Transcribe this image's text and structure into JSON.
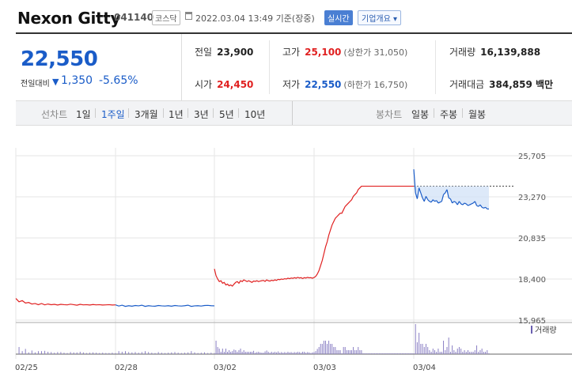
{
  "header": {
    "name": "Nexon Gitty",
    "code": "041140",
    "market": "코스닥",
    "time": "2022.03.04 13:49 기준(장중)",
    "realtime": "실시간",
    "company_info": "기업개요 ▾"
  },
  "summary": {
    "price": "22,550",
    "change_label": "전일대비",
    "change_arrow": "▼",
    "change": "1,350",
    "change_rate": "-5.65%",
    "prev_close_label": "전일",
    "prev_close": "23,900",
    "high_label": "고가",
    "high": "25,100",
    "upper_limit": "(상한가 31,050)",
    "volume_label": "거래량",
    "volume": "16,139,888",
    "open_label": "시가",
    "open": "24,450",
    "low_label": "저가",
    "low": "22,550",
    "lower_limit": "(하한가 16,750)",
    "amount_label": "거래대금",
    "amount": "384,859 백만"
  },
  "toolbar": {
    "line_label": "선차트",
    "periods": [
      "1일",
      "1주일",
      "3개월",
      "1년",
      "3년",
      "5년",
      "10년"
    ],
    "active_period": "1주일",
    "candle_label": "봉차트",
    "candles": [
      "일봉",
      "주봉",
      "월봉"
    ]
  },
  "colors": {
    "up": "#e02020",
    "down": "#1a5cc8",
    "volume": "#8a7fc4",
    "grid": "#e6e6e6"
  },
  "chart_data": {
    "type": "line",
    "y_ticks": [
      "25,705",
      "23,270",
      "20,835",
      "18,400",
      "15,965"
    ],
    "ylim": [
      15965,
      25705
    ],
    "reference_price": 23900,
    "x_labels": [
      "02/25",
      "02/28",
      "03/02",
      "03/03",
      "03/04"
    ],
    "volume_label": "거래량",
    "series": [
      {
        "day": "02/25",
        "color": "up",
        "values": [
          17250,
          17050,
          17120,
          16980,
          17010,
          16920,
          16950,
          16880,
          16950,
          16870,
          16920,
          16880,
          16900,
          16860,
          16900,
          16880,
          16870,
          16910,
          16880,
          16850,
          16900,
          16870,
          16880,
          16860,
          16890,
          16870,
          16880,
          16860,
          16870,
          16880,
          16860,
          16870
        ]
      },
      {
        "day": "02/28",
        "color": "down",
        "values": [
          16870,
          16800,
          16850,
          16780,
          16820,
          16790,
          16830,
          16810,
          16850,
          16780,
          16820,
          16800,
          16790,
          16830,
          16810,
          16800,
          16820,
          16790,
          16830,
          16810,
          16800,
          16820,
          16850,
          16780,
          16810,
          16820,
          16800,
          16830,
          16840,
          16820,
          16810
        ]
      },
      {
        "day": "03/02",
        "color": "up",
        "values": [
          19000,
          18600,
          18400,
          18250,
          18300,
          18150,
          18200,
          18050,
          18100,
          18000,
          18050,
          17980,
          18100,
          18200,
          18250,
          18150,
          18300,
          18250,
          18350,
          18300,
          18250,
          18300,
          18250,
          18200,
          18280,
          18260,
          18300,
          18250,
          18280,
          18300,
          18320,
          18260,
          18350,
          18300,
          18280,
          18330,
          18300,
          18350,
          18320,
          18380,
          18360,
          18400,
          18380,
          18420,
          18400,
          18450,
          18420,
          18460,
          18440,
          18480,
          18450,
          18500,
          18460,
          18480,
          18430,
          18480,
          18460,
          18500,
          18470,
          18480,
          18450,
          18490
        ]
      },
      {
        "day": "03/03",
        "color": "up",
        "values": [
          18490,
          18560,
          18700,
          18900,
          19200,
          19500,
          19900,
          20300,
          20600,
          21000,
          21300,
          21600,
          21800,
          22000,
          22100,
          22200,
          22300,
          22300,
          22500,
          22700,
          22800,
          22900,
          23000,
          23100,
          23300,
          23400,
          23500,
          23700,
          23800,
          23900,
          23900,
          23900,
          23900,
          23900,
          23900,
          23900,
          23900,
          23900,
          23900,
          23900,
          23900,
          23900,
          23900,
          23900,
          23900,
          23900,
          23900,
          23900,
          23900,
          23900,
          23900,
          23900,
          23900,
          23900,
          23900,
          23900,
          23900,
          23900,
          23900,
          23900,
          23900,
          23900
        ]
      },
      {
        "day": "03/04",
        "color": "mixed",
        "values": [
          24900,
          23500,
          23150,
          23800,
          23500,
          23200,
          23000,
          23300,
          23100,
          23000,
          22950,
          23100,
          23000,
          23050,
          22900,
          22950,
          23000,
          23400,
          23500,
          23700,
          23200,
          23150,
          22900,
          23000,
          22950,
          22800,
          23000,
          22850,
          22800,
          22900,
          22850,
          22750,
          22800,
          22850,
          22900,
          23000,
          22750,
          22700,
          22800,
          22650,
          22600,
          22650,
          22550,
          22550
        ]
      }
    ]
  }
}
